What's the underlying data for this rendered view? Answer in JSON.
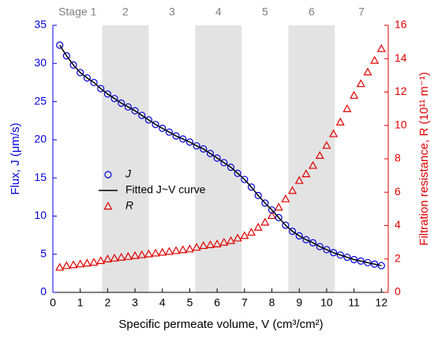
{
  "chart_data": {
    "type": "scatter",
    "xlabel": "Specific permeate volume, V (cm³/cm²)",
    "ylabel": "Flux, J (μm/s)",
    "y2label": "Filtration resistance, R (10¹¹ m⁻¹)",
    "xlim": [
      0,
      12.25
    ],
    "xticks": [
      0,
      1,
      2,
      3,
      4,
      5,
      6,
      7,
      8,
      9,
      10,
      11,
      12
    ],
    "ylim": [
      0,
      35
    ],
    "yticks": [
      0,
      5,
      10,
      15,
      20,
      25,
      30,
      35
    ],
    "y2lim": [
      0,
      16
    ],
    "y2ticks": [
      0,
      2,
      4,
      6,
      8,
      10,
      12,
      14,
      16
    ],
    "y_color": "#0000e0",
    "y2_color": "#e00000",
    "band_color": "#e3e3e3",
    "legend": "center-left",
    "stages": [
      {
        "label": "Stage 1",
        "range": [
          0,
          1.8
        ],
        "shaded": false
      },
      {
        "label": "2",
        "range": [
          1.8,
          3.5
        ],
        "shaded": true
      },
      {
        "label": "3",
        "range": [
          3.5,
          5.2
        ],
        "shaded": false
      },
      {
        "label": "4",
        "range": [
          5.2,
          6.9
        ],
        "shaded": true
      },
      {
        "label": "5",
        "range": [
          6.9,
          8.6
        ],
        "shaded": false
      },
      {
        "label": "6",
        "range": [
          8.6,
          10.3
        ],
        "shaded": true
      },
      {
        "label": "7",
        "range": [
          10.3,
          12.25
        ],
        "shaded": false
      }
    ],
    "x": [
      0.25,
      0.5,
      0.75,
      1,
      1.25,
      1.5,
      1.75,
      2,
      2.25,
      2.5,
      2.75,
      3,
      3.25,
      3.5,
      3.75,
      4,
      4.25,
      4.5,
      4.75,
      5,
      5.25,
      5.5,
      5.75,
      6,
      6.25,
      6.5,
      6.75,
      7,
      7.25,
      7.5,
      7.75,
      8,
      8.25,
      8.5,
      8.75,
      9,
      9.25,
      9.5,
      9.75,
      10,
      10.25,
      10.5,
      10.75,
      11,
      11.25,
      11.5,
      11.75,
      12
    ],
    "series": [
      {
        "name": "J",
        "marker": "circle",
        "color": "#0000e0",
        "axis": "y",
        "values": [
          32.4,
          31.0,
          29.8,
          28.8,
          28.1,
          27.5,
          26.7,
          26.0,
          25.4,
          24.8,
          24.3,
          23.8,
          23.2,
          22.6,
          22.0,
          21.5,
          21.0,
          20.5,
          20.1,
          19.7,
          19.2,
          18.8,
          18.2,
          17.6,
          17.0,
          16.4,
          15.6,
          14.8,
          13.8,
          12.7,
          11.7,
          10.8,
          9.8,
          8.8,
          8.0,
          7.4,
          6.9,
          6.5,
          6.0,
          5.6,
          5.2,
          4.9,
          4.6,
          4.3,
          4.1,
          3.9,
          3.7,
          3.5
        ]
      },
      {
        "name": "Fitted J~V curve",
        "marker": "line",
        "color": "#000000",
        "axis": "y",
        "values": [
          32.4,
          31.0,
          29.8,
          28.8,
          28.1,
          27.5,
          26.7,
          26.0,
          25.4,
          24.8,
          24.3,
          23.8,
          23.2,
          22.6,
          22.0,
          21.5,
          21.0,
          20.5,
          20.1,
          19.7,
          19.2,
          18.8,
          18.2,
          17.6,
          17.0,
          16.4,
          15.6,
          14.8,
          13.8,
          12.7,
          11.7,
          10.8,
          9.8,
          8.8,
          8.0,
          7.4,
          6.9,
          6.5,
          6.0,
          5.6,
          5.2,
          4.9,
          4.6,
          4.3,
          4.1,
          3.9,
          3.7,
          3.5
        ]
      },
      {
        "name": "R",
        "marker": "triangle",
        "color": "#e00000",
        "axis": "y2",
        "values": [
          1.5,
          1.6,
          1.65,
          1.7,
          1.75,
          1.8,
          1.9,
          2.0,
          2.05,
          2.1,
          2.15,
          2.2,
          2.25,
          2.3,
          2.35,
          2.4,
          2.45,
          2.5,
          2.55,
          2.6,
          2.7,
          2.8,
          2.85,
          2.9,
          3.0,
          3.1,
          3.25,
          3.4,
          3.6,
          3.9,
          4.2,
          4.6,
          5.1,
          5.6,
          6.1,
          6.7,
          7.1,
          7.6,
          8.2,
          8.8,
          9.5,
          10.2,
          11.0,
          11.8,
          12.5,
          13.2,
          13.9,
          14.6
        ]
      }
    ]
  }
}
